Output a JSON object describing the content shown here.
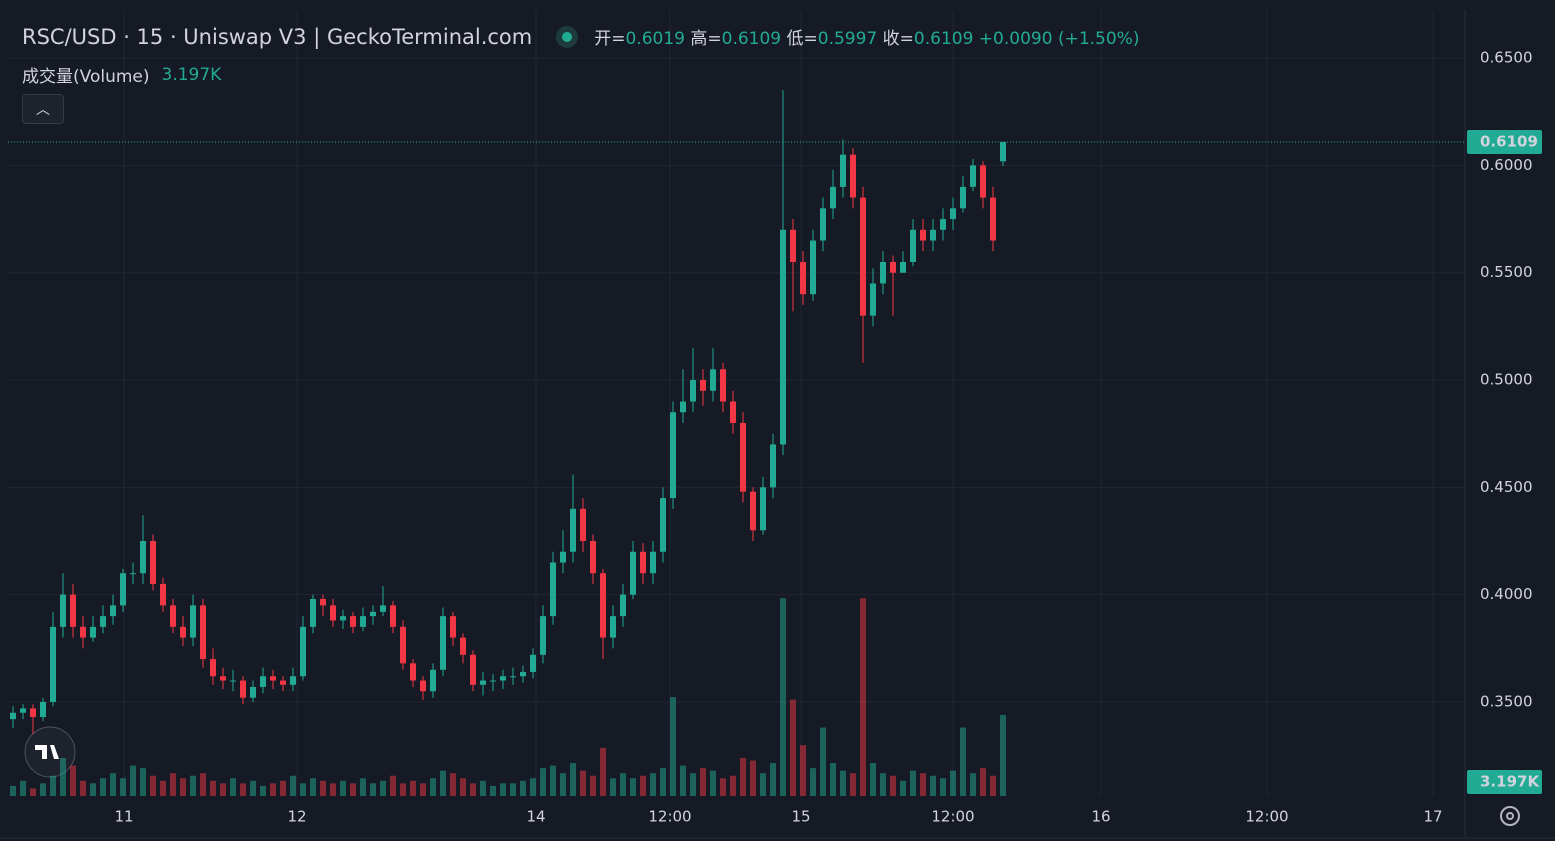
{
  "chart_data": {
    "type": "candlestick",
    "title": "RSC/USD · 15 · Uniswap V3 | GeckoTerminal.com",
    "ohlc_labels": [
      "开=",
      "高=",
      "低=",
      "收="
    ],
    "change": "+0.0090",
    "change_pct": "(+1.50%)",
    "volume_name": "成交量(Volume)",
    "volume_label": "3.197K",
    "up_color": "#22ab94",
    "down_color": "#f23645",
    "grid": true,
    "xlim": [
      -0.5,
      145.2
    ],
    "xticks": [
      {
        "value": 11.1,
        "label": "11"
      },
      {
        "value": 28.4,
        "label": "12"
      },
      {
        "value": 52.3,
        "label": "14"
      },
      {
        "value": 65.7,
        "label": "12:00"
      },
      {
        "value": 78.8,
        "label": "15"
      },
      {
        "value": 94,
        "label": "12:00"
      },
      {
        "value": 108.8,
        "label": "16"
      },
      {
        "value": 125.4,
        "label": "12:00"
      },
      {
        "value": 142,
        "label": "17"
      }
    ],
    "ylim": [
      0.3062,
      0.6724
    ],
    "yticks": [
      {
        "value": 0.35,
        "label": "0.3500"
      },
      {
        "value": 0.4,
        "label": "0.4000"
      },
      {
        "value": 0.45,
        "label": "0.4500"
      },
      {
        "value": 0.5,
        "label": "0.5000"
      },
      {
        "value": 0.55,
        "label": "0.5500"
      },
      {
        "value": 0.6,
        "label": "0.6000"
      },
      {
        "value": 0.65,
        "label": "0.6500"
      }
    ],
    "volume_ylim": [
      0,
      31000
    ],
    "open": [
      0.342,
      0.345,
      0.347,
      0.343,
      0.35,
      0.385,
      0.4,
      0.385,
      0.38,
      0.385,
      0.39,
      0.395,
      0.41,
      0.41,
      0.425,
      0.405,
      0.395,
      0.385,
      0.38,
      0.395,
      0.37,
      0.362,
      0.36,
      0.36,
      0.352,
      0.357,
      0.362,
      0.36,
      0.358,
      0.362,
      0.385,
      0.398,
      0.395,
      0.388,
      0.39,
      0.385,
      0.39,
      0.392,
      0.395,
      0.385,
      0.368,
      0.36,
      0.355,
      0.365,
      0.39,
      0.38,
      0.372,
      0.358,
      0.36,
      0.36,
      0.362,
      0.362,
      0.364,
      0.372,
      0.39,
      0.415,
      0.42,
      0.44,
      0.425,
      0.41,
      0.38,
      0.39,
      0.4,
      0.42,
      0.41,
      0.42,
      0.445,
      0.485,
      0.49,
      0.5,
      0.495,
      0.505,
      0.49,
      0.48,
      0.448,
      0.43,
      0.45,
      0.47,
      0.57,
      0.555,
      0.54,
      0.565,
      0.58,
      0.59,
      0.605,
      0.585,
      0.53,
      0.545,
      0.555,
      0.55,
      0.555,
      0.57,
      0.565,
      0.57,
      0.575,
      0.58,
      0.59,
      0.6,
      0.585,
      0.6019
    ],
    "high": [
      0.348,
      0.349,
      0.349,
      0.352,
      0.392,
      0.41,
      0.405,
      0.39,
      0.39,
      0.395,
      0.4,
      0.412,
      0.415,
      0.437,
      0.428,
      0.408,
      0.398,
      0.39,
      0.4,
      0.398,
      0.375,
      0.366,
      0.365,
      0.362,
      0.36,
      0.366,
      0.365,
      0.362,
      0.366,
      0.39,
      0.4,
      0.4,
      0.398,
      0.393,
      0.392,
      0.394,
      0.395,
      0.404,
      0.397,
      0.388,
      0.37,
      0.362,
      0.368,
      0.394,
      0.392,
      0.382,
      0.374,
      0.364,
      0.363,
      0.365,
      0.366,
      0.367,
      0.375,
      0.395,
      0.42,
      0.43,
      0.456,
      0.445,
      0.428,
      0.412,
      0.395,
      0.405,
      0.425,
      0.424,
      0.425,
      0.45,
      0.49,
      0.505,
      0.515,
      0.505,
      0.515,
      0.508,
      0.495,
      0.485,
      0.45,
      0.455,
      0.475,
      0.635,
      0.575,
      0.56,
      0.57,
      0.585,
      0.598,
      0.612,
      0.608,
      0.59,
      0.552,
      0.56,
      0.558,
      0.56,
      0.575,
      0.575,
      0.575,
      0.58,
      0.585,
      0.595,
      0.603,
      0.602,
      0.59,
      0.6109
    ],
    "low": [
      0.338,
      0.342,
      0.335,
      0.341,
      0.348,
      0.38,
      0.38,
      0.375,
      0.378,
      0.382,
      0.386,
      0.392,
      0.405,
      0.405,
      0.402,
      0.392,
      0.382,
      0.376,
      0.376,
      0.366,
      0.358,
      0.356,
      0.355,
      0.349,
      0.35,
      0.354,
      0.356,
      0.355,
      0.355,
      0.36,
      0.382,
      0.39,
      0.385,
      0.384,
      0.382,
      0.383,
      0.386,
      0.39,
      0.382,
      0.365,
      0.357,
      0.351,
      0.352,
      0.362,
      0.376,
      0.368,
      0.355,
      0.353,
      0.355,
      0.356,
      0.358,
      0.359,
      0.361,
      0.368,
      0.386,
      0.41,
      0.415,
      0.42,
      0.405,
      0.37,
      0.375,
      0.385,
      0.398,
      0.405,
      0.405,
      0.415,
      0.44,
      0.48,
      0.485,
      0.488,
      0.49,
      0.485,
      0.475,
      0.443,
      0.425,
      0.428,
      0.445,
      0.465,
      0.532,
      0.535,
      0.537,
      0.56,
      0.575,
      0.585,
      0.58,
      0.508,
      0.525,
      0.54,
      0.53,
      0.55,
      0.553,
      0.56,
      0.56,
      0.565,
      0.57,
      0.578,
      0.588,
      0.58,
      0.56,
      0.5997
    ],
    "close": [
      0.345,
      0.347,
      0.343,
      0.35,
      0.385,
      0.4,
      0.385,
      0.38,
      0.385,
      0.39,
      0.395,
      0.41,
      0.41,
      0.425,
      0.405,
      0.395,
      0.385,
      0.38,
      0.395,
      0.37,
      0.362,
      0.36,
      0.36,
      0.352,
      0.357,
      0.362,
      0.36,
      0.358,
      0.362,
      0.385,
      0.398,
      0.395,
      0.388,
      0.39,
      0.385,
      0.39,
      0.392,
      0.395,
      0.385,
      0.368,
      0.36,
      0.355,
      0.365,
      0.39,
      0.38,
      0.372,
      0.358,
      0.36,
      0.36,
      0.362,
      0.362,
      0.364,
      0.372,
      0.39,
      0.415,
      0.42,
      0.44,
      0.425,
      0.41,
      0.38,
      0.39,
      0.4,
      0.42,
      0.41,
      0.42,
      0.445,
      0.485,
      0.49,
      0.5,
      0.495,
      0.505,
      0.49,
      0.48,
      0.448,
      0.43,
      0.45,
      0.47,
      0.57,
      0.555,
      0.54,
      0.565,
      0.58,
      0.59,
      0.605,
      0.585,
      0.53,
      0.545,
      0.555,
      0.55,
      0.555,
      0.57,
      0.565,
      0.57,
      0.575,
      0.58,
      0.59,
      0.6,
      0.585,
      0.565,
      0.6109
    ],
    "volume": [
      400,
      600,
      300,
      500,
      800,
      1500,
      1200,
      600,
      500,
      700,
      900,
      700,
      1200,
      1100,
      800,
      600,
      900,
      700,
      800,
      900,
      600,
      500,
      700,
      500,
      600,
      400,
      500,
      600,
      800,
      500,
      700,
      600,
      500,
      600,
      500,
      700,
      500,
      600,
      800,
      500,
      600,
      500,
      700,
      1000,
      900,
      700,
      500,
      600,
      400,
      500,
      500,
      600,
      700,
      1100,
      1200,
      900,
      1300,
      1000,
      800,
      1900,
      700,
      900,
      700,
      800,
      900,
      1100,
      3900,
      1200,
      900,
      1100,
      1000,
      700,
      800,
      1500,
      1400,
      900,
      1300,
      7800,
      3800,
      2000,
      1100,
      2700,
      1300,
      1000,
      900,
      7800,
      1300,
      900,
      800,
      600,
      1000,
      900,
      800,
      700,
      1000,
      2700,
      900,
      1100,
      800,
      3197
    ]
  }
}
